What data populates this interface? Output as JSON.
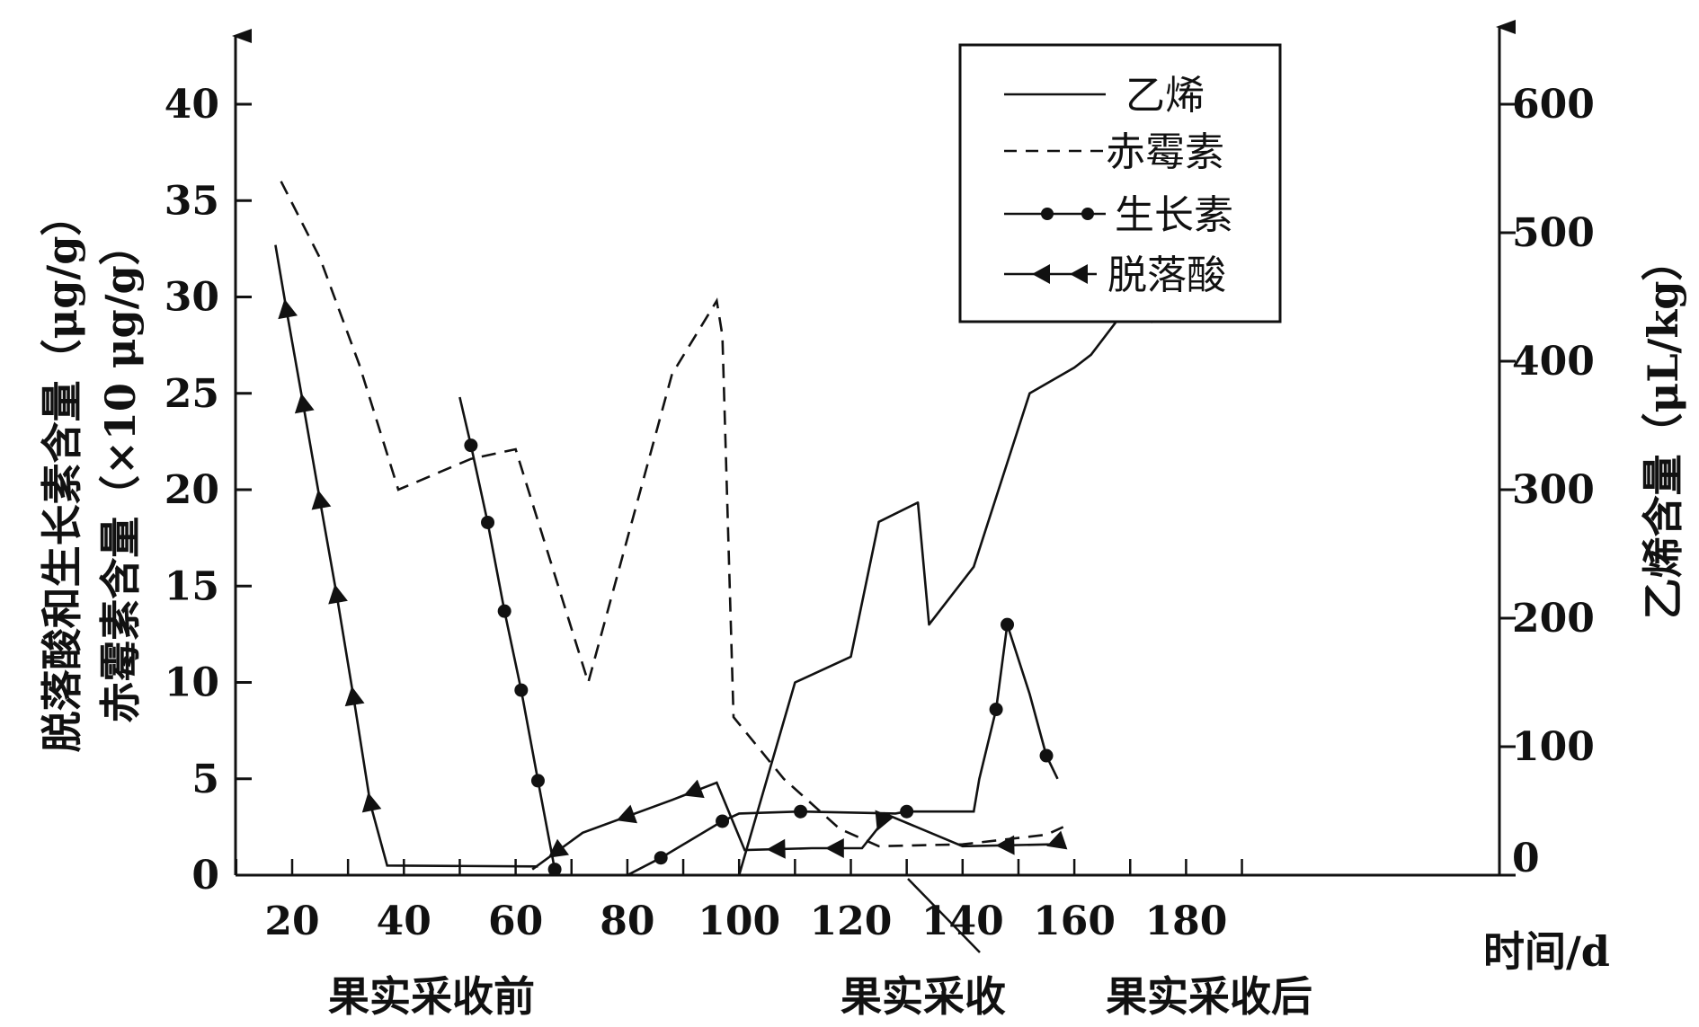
{
  "chart_data": {
    "type": "line",
    "x_axis": {
      "label": "时间/d",
      "ticks": [
        "20",
        "40",
        "60",
        "80",
        "100",
        "120",
        "140",
        "160",
        "180"
      ],
      "range": [
        0,
        200
      ]
    },
    "y_left": {
      "label_line1": "脱落酸和生长素含量（μg/g）",
      "label_line2": "赤霉素含量（×10 μg/g）",
      "ticks": [
        "0",
        "5",
        "10",
        "15",
        "20",
        "25",
        "30",
        "35",
        "40"
      ],
      "range": [
        0,
        40
      ]
    },
    "y_right": {
      "label": "乙烯含量（μL/kg）",
      "ticks": [
        "0",
        "100",
        "200",
        "300",
        "400",
        "500",
        "600"
      ],
      "range": [
        0,
        600
      ]
    },
    "period_labels": {
      "before": "果实采收前",
      "harvest": "果实采收",
      "after": "果实采收后"
    },
    "legend": {
      "placement": "top-right",
      "items": [
        {
          "key": "ethylene",
          "label": "乙烯"
        },
        {
          "key": "gibberellin",
          "label": "赤霉素"
        },
        {
          "key": "auxin",
          "label": "生长素"
        },
        {
          "key": "abscisic",
          "label": "脱落酸"
        }
      ]
    },
    "series": {
      "ethylene": {
        "axis": "right",
        "style": "solid",
        "marker": "none",
        "points": [
          [
            100,
            0
          ],
          [
            110,
            150
          ],
          [
            120,
            170
          ],
          [
            125,
            275
          ],
          [
            132,
            290
          ],
          [
            134,
            195
          ],
          [
            142,
            240
          ],
          [
            152,
            375
          ],
          [
            160,
            395
          ],
          [
            163,
            405
          ],
          [
            170,
            445
          ],
          [
            171,
            449
          ],
          [
            174,
            430
          ]
        ]
      },
      "gibberellin": {
        "axis": "left",
        "style": "dashed",
        "marker": "none",
        "points": [
          [
            18,
            36
          ],
          [
            25,
            32
          ],
          [
            32,
            26.5
          ],
          [
            39,
            20
          ],
          [
            52,
            21.6
          ],
          [
            60,
            22.1
          ],
          [
            73,
            10
          ],
          [
            88,
            26
          ],
          [
            96,
            29.8
          ],
          [
            97,
            28
          ],
          [
            99,
            8.2
          ],
          [
            108,
            5
          ],
          [
            118,
            2.4
          ],
          [
            125,
            1.5
          ],
          [
            140,
            1.6
          ],
          [
            155,
            2.1
          ],
          [
            158,
            2.5
          ]
        ]
      },
      "auxin": {
        "axis": "left",
        "style": "solid",
        "marker": "dot",
        "segments": [
          [
            [
              50,
              24.8
            ],
            [
              52,
              22.3
            ],
            [
              55,
              18.3
            ],
            [
              58,
              13.7
            ],
            [
              61,
              9.6
            ],
            [
              64,
              4.9
            ],
            [
              67,
              0.3
            ]
          ],
          [
            [
              80,
              0
            ],
            [
              86,
              0.9
            ],
            [
              97,
              2.8
            ],
            [
              100,
              3.2
            ],
            [
              111,
              3.3
            ],
            [
              128,
              3.2
            ],
            [
              130,
              3.3
            ],
            [
              142,
              3.3
            ],
            [
              143,
              5
            ],
            [
              146,
              8.6
            ],
            [
              148,
              13
            ],
            [
              152,
              9.4
            ],
            [
              155,
              6.2
            ],
            [
              157,
              5
            ]
          ]
        ]
      },
      "abscisic": {
        "axis": "left",
        "style": "solid",
        "marker": "triangle",
        "segments": [
          [
            [
              17,
              32.7
            ],
            [
              19,
              29.3
            ],
            [
              22,
              24.4
            ],
            [
              25,
              19.4
            ],
            [
              28,
              14.5
            ],
            [
              31,
              9.2
            ],
            [
              34,
              3.7
            ],
            [
              37,
              0.5
            ],
            [
              64,
              0.45
            ]
          ],
          [
            [
              63,
              0.3
            ],
            [
              72,
              2.2
            ],
            [
              88,
              3.9
            ],
            [
              96,
              4.8
            ],
            [
              101,
              1.3
            ],
            [
              113,
              1.4
            ],
            [
              122,
              1.4
            ],
            [
              125,
              2.5
            ],
            [
              126,
              3.2
            ],
            [
              140,
              1.5
            ],
            [
              156,
              1.6
            ],
            [
              158,
              1.8
            ]
          ]
        ]
      }
    }
  }
}
